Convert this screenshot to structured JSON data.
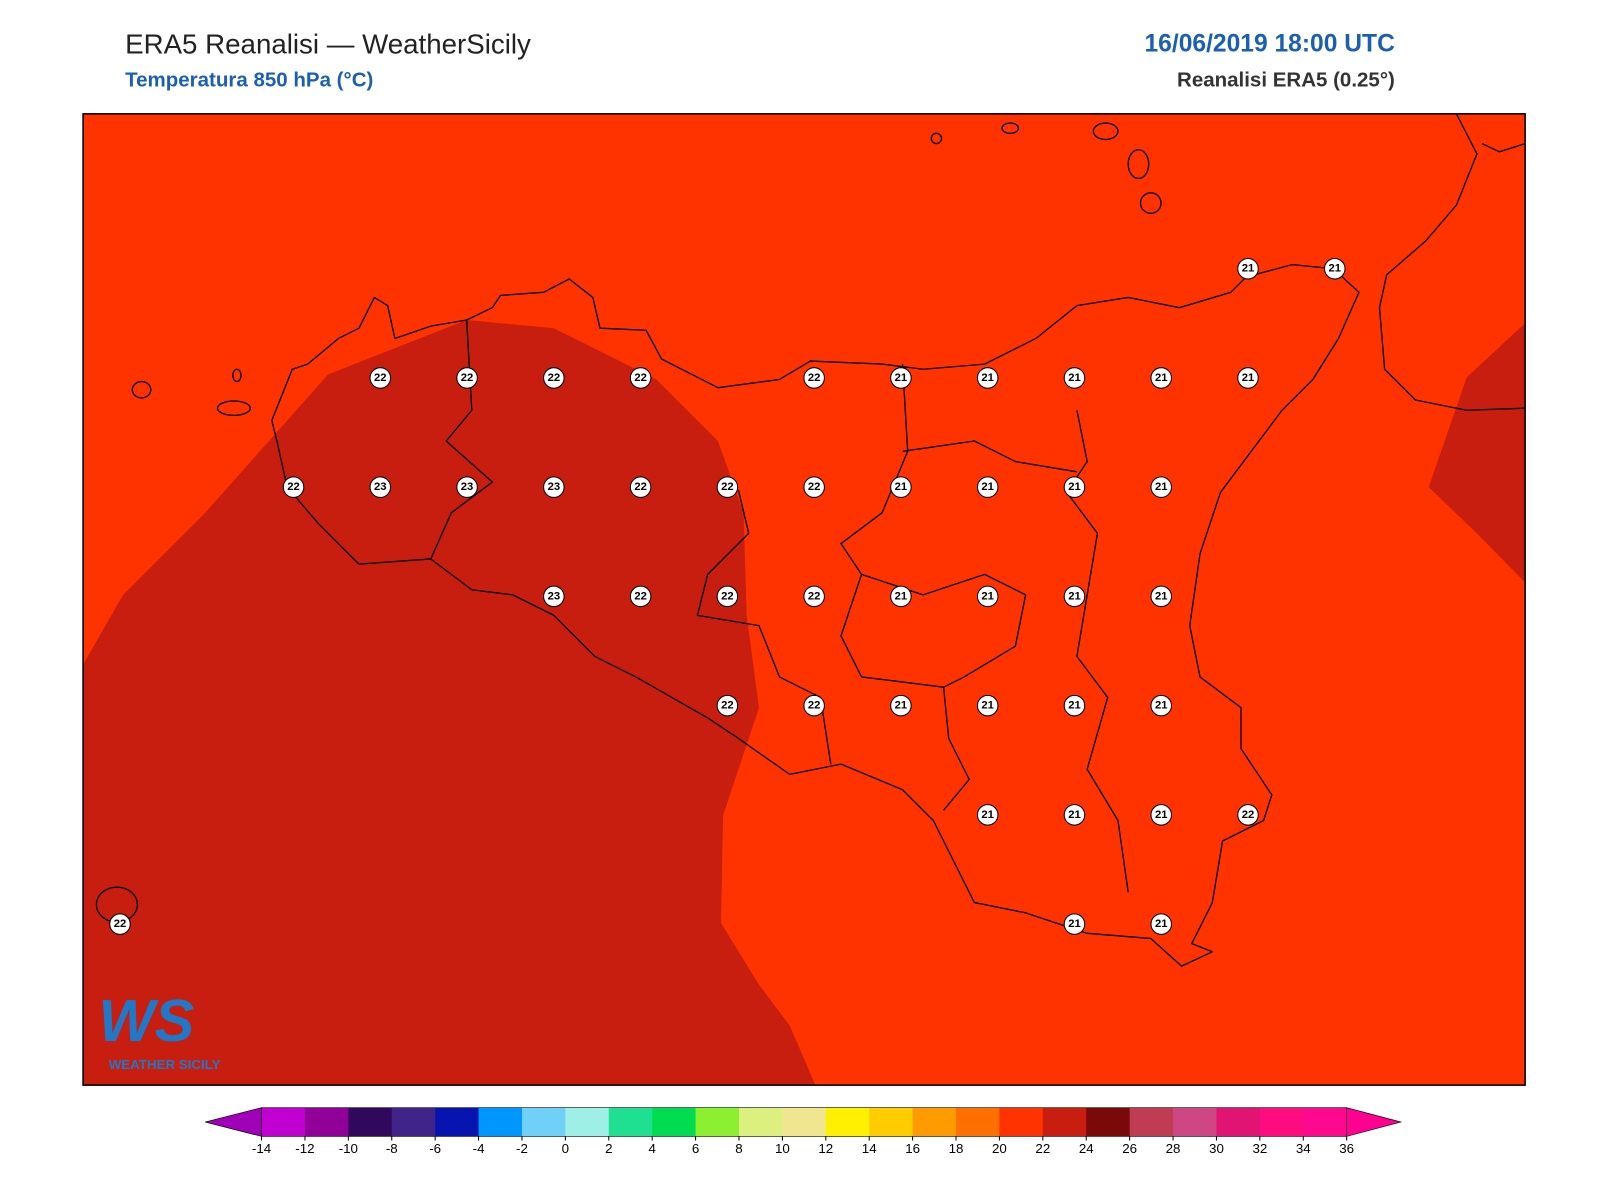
{
  "header": {
    "title": "ERA5 Reanalisi — WeatherSicily",
    "subtitle": "Temperatura 850 hPa (°C)",
    "datetime": "16/06/2019 18:00 UTC",
    "source": "Reanalisi ERA5 (0.25°)"
  },
  "map": {
    "grid": [
      [
        null,
        null,
        null,
        null,
        null,
        null,
        null,
        null,
        null,
        null,
        null,
        null,
        null,
        21,
        21
      ],
      [
        null,
        null,
        null,
        22,
        22,
        22,
        22,
        null,
        22,
        21,
        21,
        21,
        21,
        21,
        null
      ],
      [
        null,
        null,
        22,
        23,
        23,
        23,
        22,
        22,
        22,
        21,
        21,
        21,
        21,
        null,
        null
      ],
      [
        null,
        null,
        null,
        null,
        null,
        23,
        22,
        22,
        22,
        21,
        21,
        21,
        21,
        null,
        null
      ],
      [
        null,
        null,
        null,
        null,
        null,
        null,
        null,
        22,
        22,
        21,
        21,
        21,
        21,
        null,
        null
      ],
      [
        null,
        null,
        null,
        null,
        null,
        null,
        null,
        null,
        null,
        null,
        21,
        21,
        21,
        22,
        null
      ],
      [
        22,
        null,
        null,
        null,
        null,
        null,
        null,
        null,
        null,
        null,
        null,
        21,
        21,
        null,
        null
      ]
    ]
  },
  "colorbar": {
    "ticks": [
      -14,
      -12,
      -10,
      -8,
      -6,
      -4,
      -2,
      0,
      2,
      4,
      6,
      8,
      10,
      12,
      14,
      16,
      18,
      20,
      22,
      24,
      26,
      28,
      30,
      32,
      34,
      36
    ],
    "colors": [
      "#c000d0",
      "#900098",
      "#30085c",
      "#402488",
      "#0814b0",
      "#0096ff",
      "#70d0f8",
      "#9ef0e6",
      "#1ee090",
      "#00dc50",
      "#8cf030",
      "#dcf080",
      "#f0e690",
      "#fff000",
      "#ffcc00",
      "#ff9a00",
      "#ff7000",
      "#ff3300",
      "#c81e0f",
      "#7a0a0a",
      "#bf3c52",
      "#cf4684",
      "#e01472",
      "#ff0c80",
      "#ff0890"
    ],
    "under_color": "#a000b8",
    "over_color": "#ff0090"
  },
  "logo": {
    "mark": "WS",
    "text": "WEATHER SICILY"
  }
}
